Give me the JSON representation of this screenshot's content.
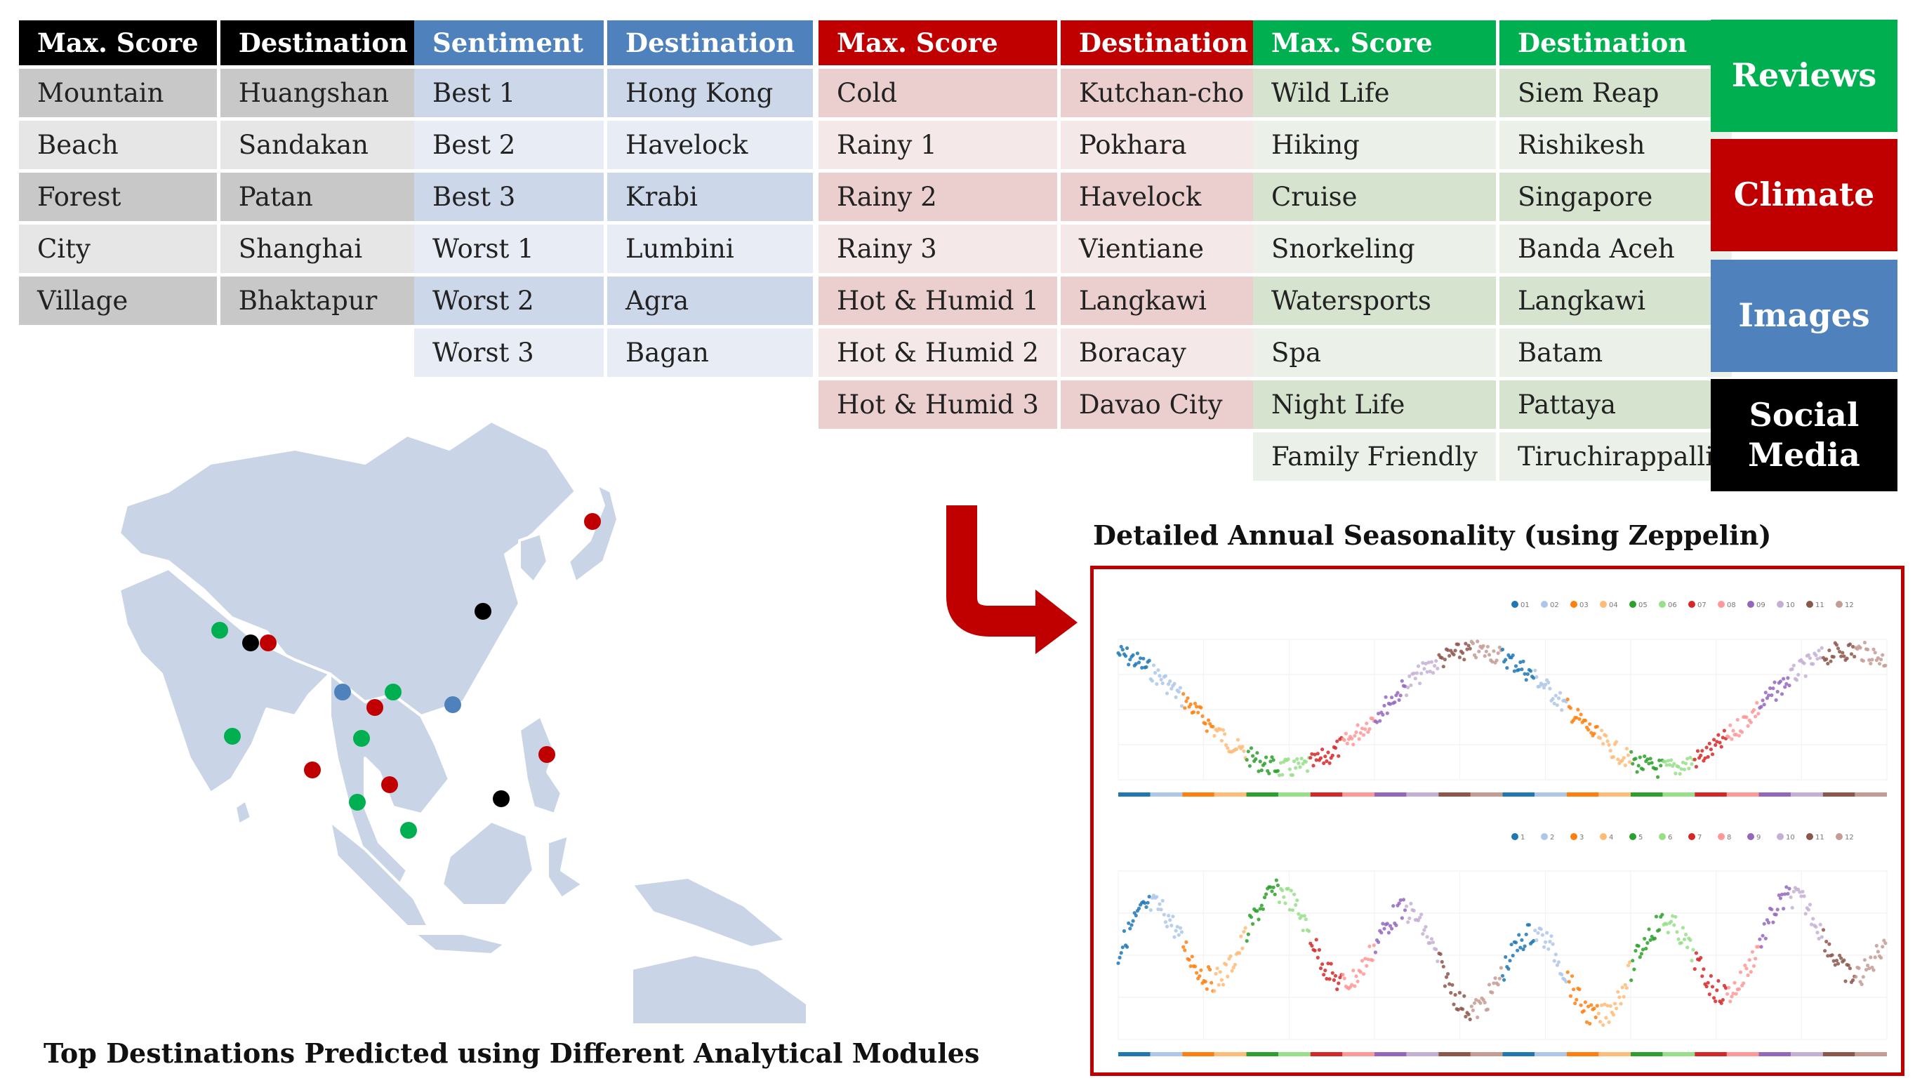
{
  "colors": {
    "black": "#000000",
    "blue": "#4f81bd",
    "red": "#c00000",
    "green": "#00b050"
  },
  "tables": [
    {
      "headers": [
        "Max. Score",
        "Destination"
      ],
      "rows": [
        [
          "Mountain",
          "Huangshan"
        ],
        [
          "Beach",
          "Sandakan"
        ],
        [
          "Forest",
          "Patan"
        ],
        [
          "City",
          "Shanghai"
        ],
        [
          "Village",
          "Bhaktapur"
        ]
      ]
    },
    {
      "headers": [
        "Sentiment",
        "Destination"
      ],
      "rows": [
        [
          "Best 1",
          "Hong Kong"
        ],
        [
          "Best 2",
          "Havelock"
        ],
        [
          "Best 3",
          "Krabi"
        ],
        [
          "Worst 1",
          "Lumbini"
        ],
        [
          "Worst 2",
          "Agra"
        ],
        [
          "Worst 3",
          "Bagan"
        ]
      ]
    },
    {
      "headers": [
        "Max. Score",
        "Destination"
      ],
      "rows": [
        [
          "Cold",
          "Kutchan-cho"
        ],
        [
          "Rainy 1",
          "Pokhara"
        ],
        [
          "Rainy 2",
          "Havelock"
        ],
        [
          "Rainy 3",
          "Vientiane"
        ],
        [
          "Hot & Humid 1",
          "Langkawi"
        ],
        [
          "Hot & Humid 2",
          "Boracay"
        ],
        [
          "Hot & Humid 3",
          "Davao City"
        ]
      ]
    },
    {
      "headers": [
        "Max. Score",
        "Destination"
      ],
      "rows": [
        [
          "Wild Life",
          "Siem Reap"
        ],
        [
          "Hiking",
          "Rishikesh"
        ],
        [
          "Cruise",
          "Singapore"
        ],
        [
          "Snorkeling",
          "Banda Aceh"
        ],
        [
          "Watersports",
          "Langkawi"
        ],
        [
          "Spa",
          "Batam"
        ],
        [
          "Night Life",
          "Pattaya"
        ],
        [
          "Family Friendly",
          "Tiruchirappalli"
        ]
      ]
    }
  ],
  "modules": [
    {
      "label": "Reviews",
      "color": "#00b050"
    },
    {
      "label": "Climate",
      "color": "#c00000"
    },
    {
      "label": "Images",
      "color": "#4f81bd"
    },
    {
      "label": "Social Media",
      "color": "#000000"
    }
  ],
  "captions": {
    "map": "Top Destinations Predicted using Different Analytical Modules",
    "seasonality": "Detailed Annual Seasonality (using Zeppelin)"
  },
  "seasonality": {
    "month_colors": [
      "#1f77b4",
      "#aec7e8",
      "#ff7f0e",
      "#ffbb78",
      "#2ca02c",
      "#98df8a",
      "#d62728",
      "#ff9896",
      "#9467bd",
      "#c5b0d5",
      "#8c564b",
      "#c49c94"
    ],
    "legend_top": [
      "01",
      "02",
      "03",
      "04",
      "05",
      "06",
      "07",
      "08",
      "09",
      "10",
      "11",
      "12"
    ],
    "legend_bottom": [
      "1",
      "2",
      "3",
      "4",
      "5",
      "6",
      "7",
      "8",
      "9",
      "10",
      "11",
      "12"
    ]
  },
  "map_markers": [
    {
      "color": "black"
    },
    {
      "color": "black"
    },
    {
      "color": "black"
    },
    {
      "color": "red"
    },
    {
      "color": "red"
    },
    {
      "color": "red"
    },
    {
      "color": "red"
    },
    {
      "color": "red"
    },
    {
      "color": "red"
    },
    {
      "color": "blue"
    },
    {
      "color": "blue"
    },
    {
      "color": "green"
    },
    {
      "color": "green"
    },
    {
      "color": "green"
    },
    {
      "color": "green"
    },
    {
      "color": "green"
    },
    {
      "color": "green"
    },
    {
      "color": "green"
    }
  ]
}
